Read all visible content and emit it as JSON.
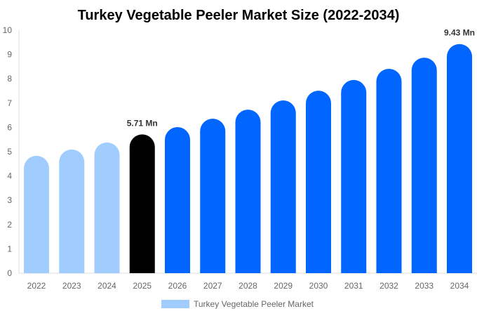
{
  "chart_data": {
    "type": "bar",
    "title": "Turkey Vegetable Peeler Market  Size (2022-2034)",
    "categories": [
      "2022",
      "2023",
      "2024",
      "2025",
      "2026",
      "2027",
      "2028",
      "2029",
      "2030",
      "2031",
      "2032",
      "2033",
      "2034"
    ],
    "series": [
      {
        "name": "Turkey Vegetable Peeler Market",
        "values": [
          4.83,
          5.09,
          5.38,
          5.71,
          6.01,
          6.36,
          6.73,
          7.11,
          7.51,
          7.95,
          8.41,
          8.87,
          9.43
        ]
      }
    ],
    "data_labels": {
      "2025": "5.71 Mn",
      "2034": "9.43 Mn"
    },
    "ylim": [
      0,
      10
    ],
    "yticks": [
      0,
      1,
      2,
      3,
      4,
      5,
      6,
      7,
      8,
      9,
      10
    ],
    "grid": false,
    "legend": "bottom",
    "colors": {
      "historic": "#a0cdfd",
      "current": "#000000",
      "forecast": "#0066ff"
    }
  }
}
